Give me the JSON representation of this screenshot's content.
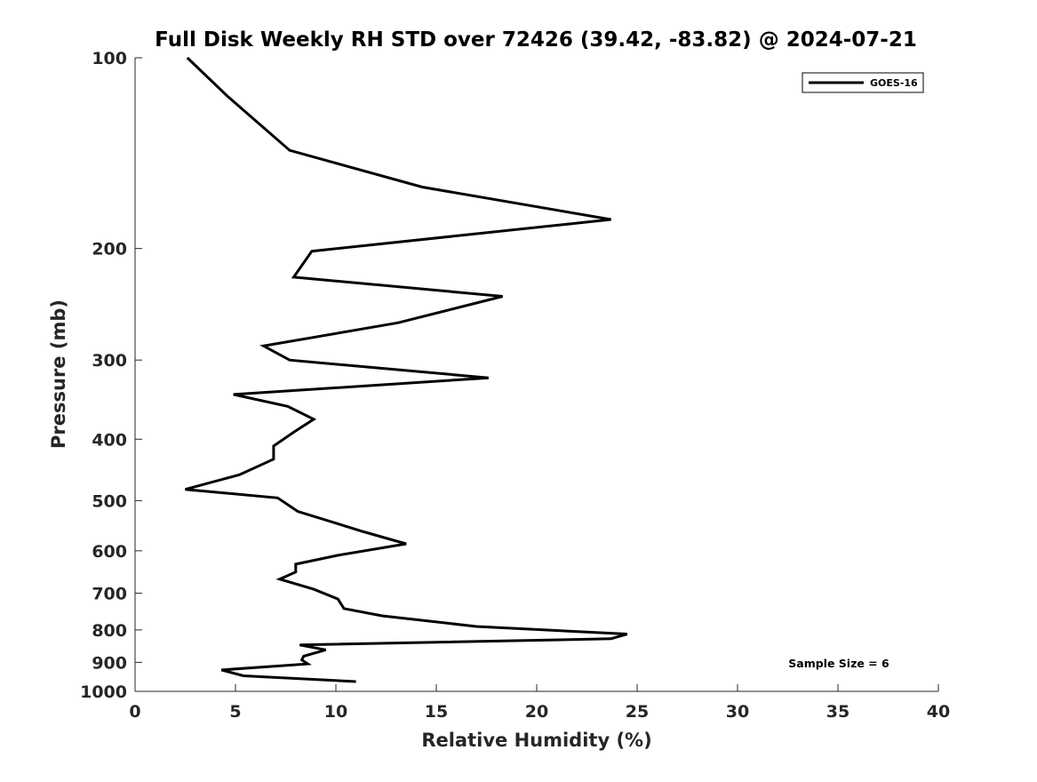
{
  "chart_data": {
    "type": "line",
    "title": "Full Disk Weekly RH STD over 72426 (39.42, -83.82) @ 2024-07-21",
    "xlabel": "Relative Humidity (%)",
    "ylabel": "Pressure (mb)",
    "xlim": [
      0,
      40
    ],
    "ylim": [
      1000,
      100
    ],
    "yscale": "log",
    "xticks": [
      0,
      5,
      10,
      15,
      20,
      25,
      30,
      35,
      40
    ],
    "yticks": [
      100,
      200,
      300,
      400,
      500,
      600,
      700,
      800,
      900,
      1000
    ],
    "grid": false,
    "legend_position": "top-right",
    "annotation": "Sample Size = 6",
    "series": [
      {
        "name": "GOES-16",
        "color": "#000000",
        "x": [
          2.6,
          4.6,
          7.7,
          14.3,
          23.7,
          8.8,
          7.9,
          18.3,
          13.1,
          6.4,
          7.7,
          17.6,
          4.9,
          7.6,
          8.9,
          7.9,
          6.9,
          6.9,
          5.2,
          2.5,
          7.1,
          8.1,
          11.4,
          13.5,
          10.1,
          8.0,
          8.0,
          7.2,
          8.9,
          10.1,
          10.4,
          12.3,
          17.0,
          24.5,
          23.7,
          8.2,
          9.5,
          8.4,
          8.3,
          8.6,
          4.3,
          5.4,
          11.0
        ],
        "y": [
          100,
          115,
          140,
          160,
          180,
          202,
          222,
          238,
          262,
          285,
          300,
          320,
          340,
          355,
          372,
          390,
          410,
          430,
          455,
          480,
          495,
          520,
          560,
          585,
          610,
          630,
          648,
          665,
          690,
          715,
          740,
          760,
          790,
          812,
          826,
          845,
          860,
          880,
          892,
          905,
          925,
          945,
          965
        ]
      }
    ]
  }
}
